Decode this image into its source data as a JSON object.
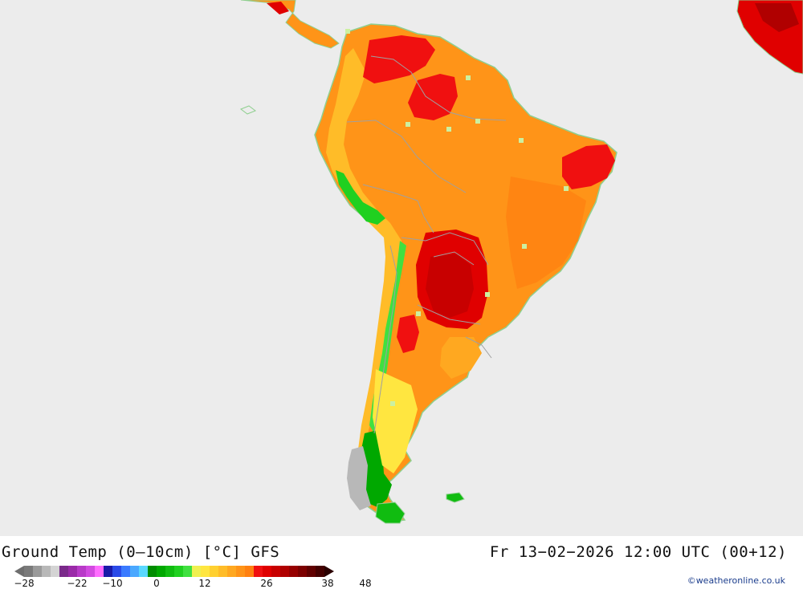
{
  "map": {
    "region": "South America",
    "ocean_color": "#ececec",
    "land_outline_color": "#8fcf8f",
    "border_color": "#a0a0a0"
  },
  "footer": {
    "title": "Ground Temp (0–10cm) [°C] GFS",
    "timestamp": "Fr 13−02−2026 12:00 UTC (00+12)",
    "credit": "©weatheronline.co.uk"
  },
  "legend": {
    "colors": [
      "#7a7a7a",
      "#9a9a9a",
      "#b8b8b8",
      "#d4d4d4",
      "#7a2a8a",
      "#9a2aa8",
      "#b83ac8",
      "#d24ae0",
      "#ff6cff",
      "#1a1aa8",
      "#2a4ae8",
      "#3a7aff",
      "#4aa8ff",
      "#5ad8ff",
      "#008c00",
      "#00a800",
      "#10bc10",
      "#20d020",
      "#40e040",
      "#f0f050",
      "#ffe640",
      "#ffd030",
      "#ffbc28",
      "#ffa820",
      "#ff9418",
      "#ff8010",
      "#f01010",
      "#e00000",
      "#c80000",
      "#b00000",
      "#960000",
      "#7c0000",
      "#600000",
      "#440000"
    ],
    "tick_labels": [
      "−28",
      "−22",
      "−10",
      "0",
      "12",
      "26",
      "38",
      "48"
    ]
  }
}
